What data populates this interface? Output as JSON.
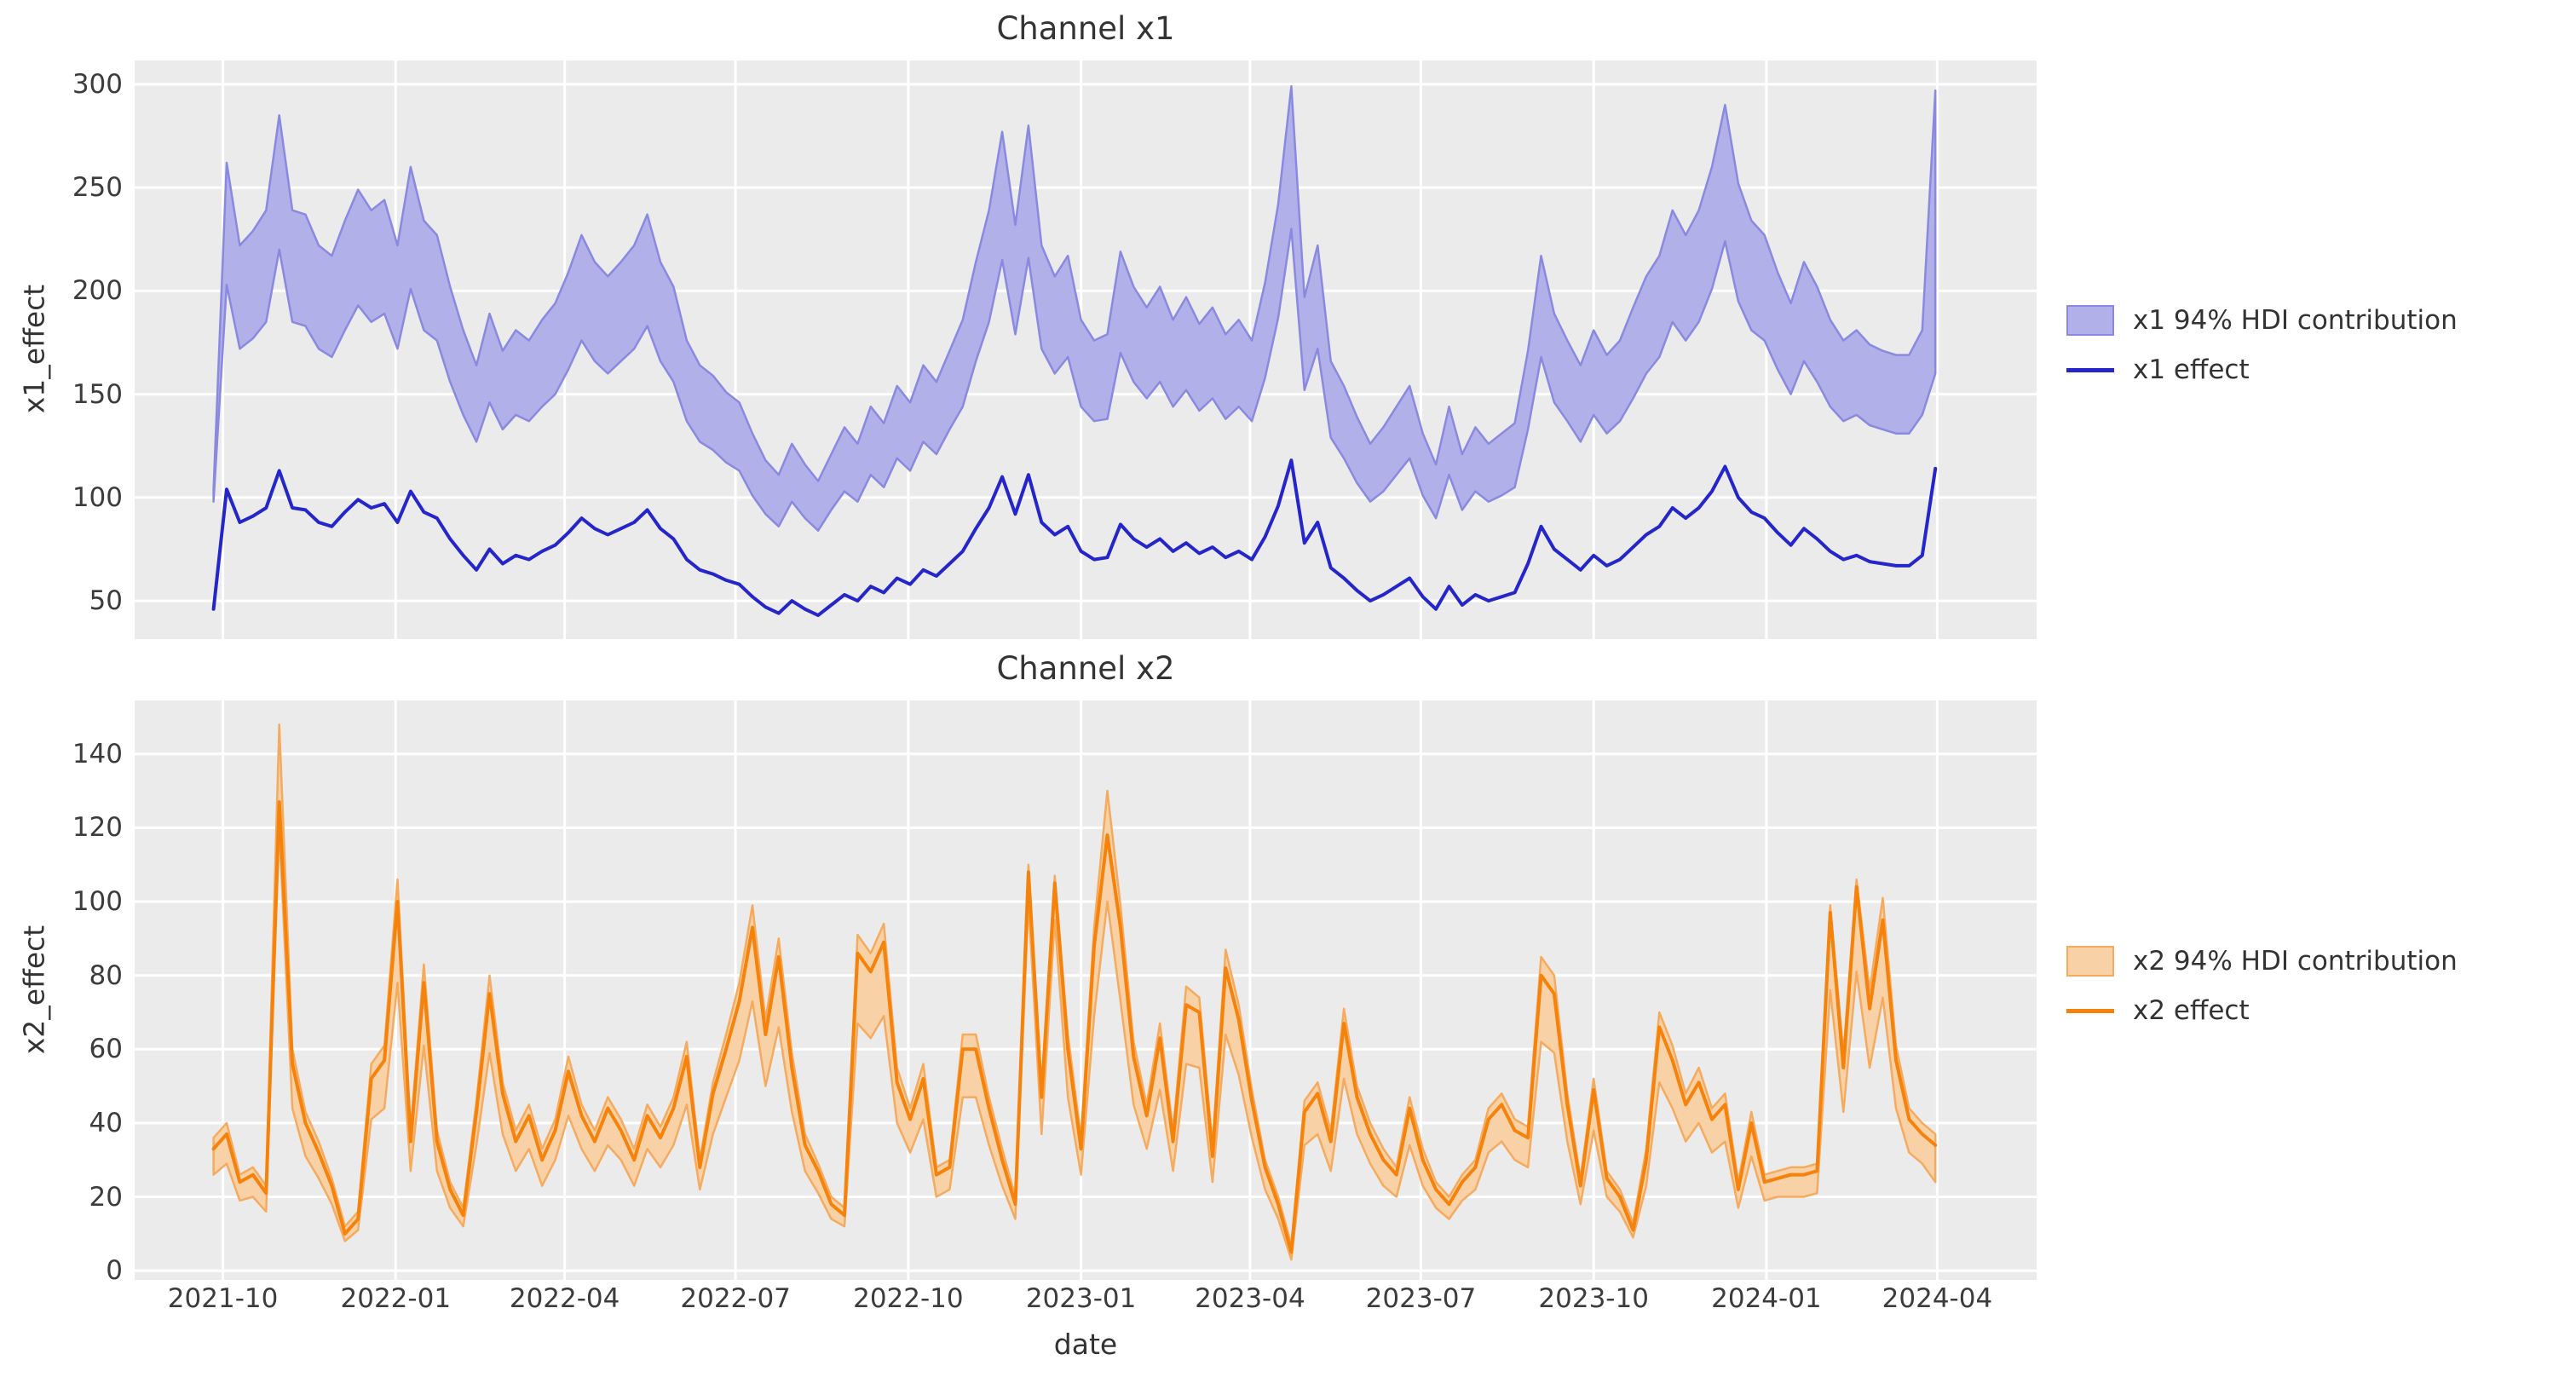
{
  "figure": {
    "panel_background": "#ebebeb",
    "grid_color": "#ffffff",
    "tick_text_color": "#3c3c3c",
    "label_text_color": "#333333"
  },
  "x_axis": {
    "label": "date",
    "x_start_date": "2021-09-26",
    "x_freq_days": 7,
    "n_points": 132,
    "ticks": [
      {
        "label": "2021-10",
        "date": "2021-10-01"
      },
      {
        "label": "2022-01",
        "date": "2022-01-01"
      },
      {
        "label": "2022-04",
        "date": "2022-04-01"
      },
      {
        "label": "2022-07",
        "date": "2022-07-01"
      },
      {
        "label": "2022-10",
        "date": "2022-10-01"
      },
      {
        "label": "2023-01",
        "date": "2023-01-01"
      },
      {
        "label": "2023-04",
        "date": "2023-04-01"
      },
      {
        "label": "2023-07",
        "date": "2023-07-01"
      },
      {
        "label": "2023-10",
        "date": "2023-10-01"
      },
      {
        "label": "2024-01",
        "date": "2024-01-01"
      },
      {
        "label": "2024-04",
        "date": "2024-04-01"
      }
    ]
  },
  "chart_data": [
    {
      "type": "area",
      "title": "Channel x1",
      "ylabel": "x1_effect",
      "xlabel": "date",
      "ylim": [
        31.5,
        311.5
      ],
      "yticks": [
        50,
        100,
        150,
        200,
        250,
        300
      ],
      "grid": true,
      "legend_position": "right",
      "series": [
        {
          "name": "x1 94% HDI contribution",
          "kind": "band",
          "fill_color": "#b1b0e8",
          "edge_color": "#8a89e0",
          "lower": [
            98,
            203,
            172,
            177,
            185,
            220,
            185,
            183,
            172,
            168,
            181,
            193,
            185,
            189,
            172,
            201,
            181,
            176,
            156,
            140,
            127,
            146,
            133,
            140,
            137,
            144,
            150,
            162,
            176,
            166,
            160,
            166,
            172,
            183,
            166,
            156,
            137,
            127,
            123,
            117,
            113,
            101,
            92,
            86,
            98,
            90,
            84,
            94,
            103,
            98,
            111,
            105,
            119,
            113,
            127,
            121,
            133,
            144,
            166,
            185,
            215,
            179,
            216,
            172,
            160,
            168,
            144,
            137,
            138,
            170,
            156,
            148,
            156,
            144,
            152,
            142,
            148,
            138,
            144,
            137,
            158,
            187,
            230,
            152,
            172,
            129,
            119,
            107,
            98,
            103,
            111,
            119,
            101,
            90,
            111,
            94,
            103,
            98,
            101,
            105,
            133,
            168,
            146,
            137,
            127,
            140,
            131,
            137,
            148,
            160,
            168,
            185,
            176,
            185,
            201,
            224,
            195,
            181,
            176,
            162,
            150,
            166,
            156,
            144,
            137,
            140,
            135,
            133,
            131,
            131,
            140,
            160
          ],
          "upper": [
            104,
            262,
            222,
            229,
            239,
            285,
            239,
            237,
            222,
            217,
            234,
            249,
            239,
            244,
            222,
            260,
            234,
            227,
            202,
            181,
            164,
            189,
            171,
            181,
            176,
            186,
            194,
            209,
            227,
            214,
            207,
            214,
            222,
            237,
            214,
            202,
            176,
            164,
            159,
            151,
            146,
            131,
            118,
            111,
            126,
            116,
            108,
            121,
            134,
            126,
            144,
            136,
            154,
            146,
            164,
            156,
            171,
            186,
            214,
            239,
            277,
            232,
            280,
            222,
            207,
            217,
            186,
            176,
            179,
            219,
            202,
            192,
            202,
            186,
            197,
            184,
            192,
            179,
            186,
            176,
            204,
            242,
            299,
            197,
            222,
            166,
            154,
            139,
            126,
            134,
            144,
            154,
            131,
            116,
            144,
            121,
            134,
            126,
            131,
            136,
            171,
            217,
            189,
            176,
            164,
            181,
            169,
            176,
            192,
            207,
            217,
            239,
            227,
            239,
            260,
            290,
            252,
            234,
            227,
            209,
            194,
            214,
            202,
            186,
            176,
            181,
            174,
            171,
            169,
            169,
            181,
            297
          ]
        },
        {
          "name": "x1 effect",
          "kind": "line",
          "color": "#2526c9",
          "values": [
            46,
            104,
            88,
            91,
            95,
            113,
            95,
            94,
            88,
            86,
            93,
            99,
            95,
            97,
            88,
            103,
            93,
            90,
            80,
            72,
            65,
            75,
            68,
            72,
            70,
            74,
            77,
            83,
            90,
            85,
            82,
            85,
            88,
            94,
            85,
            80,
            70,
            65,
            63,
            60,
            58,
            52,
            47,
            44,
            50,
            46,
            43,
            48,
            53,
            50,
            57,
            54,
            61,
            58,
            65,
            62,
            68,
            74,
            85,
            95,
            110,
            92,
            111,
            88,
            82,
            86,
            74,
            70,
            71,
            87,
            80,
            76,
            80,
            74,
            78,
            73,
            76,
            71,
            74,
            70,
            81,
            96,
            118,
            78,
            88,
            66,
            61,
            55,
            50,
            53,
            57,
            61,
            52,
            46,
            57,
            48,
            53,
            50,
            52,
            54,
            68,
            86,
            75,
            70,
            65,
            72,
            67,
            70,
            76,
            82,
            86,
            95,
            90,
            95,
            103,
            115,
            100,
            93,
            90,
            83,
            77,
            85,
            80,
            74,
            70,
            72,
            69,
            68,
            67,
            67,
            72,
            114
          ]
        }
      ]
    },
    {
      "type": "area",
      "title": "Channel x2",
      "ylabel": "x2_effect",
      "xlabel": "date",
      "ylim": [
        -2.5,
        154.5
      ],
      "yticks": [
        0,
        20,
        40,
        60,
        80,
        100,
        120,
        140
      ],
      "grid": true,
      "legend_position": "right",
      "series": [
        {
          "name": "x2 94% HDI contribution",
          "kind": "band",
          "fill_color": "#f9d1a7",
          "edge_color": "#f5ab5f",
          "lower": [
            26,
            29,
            19,
            20,
            16,
            120,
            44,
            31,
            25,
            18,
            8,
            11,
            41,
            44,
            78,
            27,
            61,
            27,
            17,
            12,
            34,
            59,
            37,
            27,
            33,
            23,
            30,
            42,
            33,
            27,
            34,
            30,
            23,
            33,
            28,
            34,
            45,
            22,
            37,
            47,
            57,
            73,
            50,
            66,
            43,
            27,
            21,
            14,
            12,
            67,
            63,
            69,
            40,
            32,
            41,
            20,
            22,
            47,
            47,
            34,
            23,
            14,
            100,
            37,
            95,
            47,
            26,
            69,
            100,
            73,
            45,
            33,
            49,
            27,
            56,
            55,
            24,
            64,
            53,
            36,
            22,
            14,
            3,
            34,
            37,
            27,
            52,
            37,
            29,
            23,
            20,
            34,
            23,
            17,
            14,
            19,
            22,
            32,
            35,
            30,
            28,
            62,
            59,
            35,
            18,
            38,
            20,
            16,
            9,
            23,
            51,
            44,
            35,
            40,
            32,
            35,
            17,
            31,
            19,
            20,
            20,
            20,
            21,
            76,
            43,
            81,
            55,
            74,
            44,
            32,
            29,
            24
          ],
          "upper": [
            36,
            40,
            26,
            28,
            23,
            148,
            60,
            43,
            35,
            25,
            12,
            16,
            56,
            61,
            106,
            38,
            83,
            38,
            24,
            17,
            46,
            80,
            51,
            38,
            45,
            33,
            41,
            58,
            45,
            38,
            47,
            41,
            33,
            45,
            39,
            47,
            62,
            30,
            51,
            64,
            78,
            99,
            68,
            90,
            59,
            37,
            29,
            20,
            17,
            91,
            86,
            94,
            55,
            44,
            56,
            28,
            30,
            64,
            64,
            47,
            33,
            20,
            110,
            50,
            107,
            64,
            36,
            93,
            130,
            99,
            62,
            45,
            67,
            38,
            77,
            74,
            34,
            87,
            72,
            49,
            30,
            20,
            7,
            46,
            51,
            38,
            71,
            50,
            40,
            33,
            28,
            47,
            33,
            24,
            20,
            26,
            30,
            44,
            48,
            41,
            39,
            85,
            80,
            48,
            25,
            52,
            27,
            22,
            13,
            33,
            70,
            61,
            48,
            55,
            44,
            48,
            24,
            43,
            26,
            27,
            28,
            28,
            29,
            99,
            59,
            106,
            76,
            101,
            61,
            44,
            40,
            37
          ]
        },
        {
          "name": "x2 effect",
          "kind": "line",
          "color": "#f5820b",
          "values": [
            33,
            37,
            24,
            26,
            21,
            127,
            56,
            40,
            32,
            23,
            10,
            14,
            52,
            57,
            100,
            35,
            78,
            35,
            22,
            15,
            43,
            75,
            48,
            35,
            42,
            30,
            38,
            54,
            42,
            35,
            44,
            38,
            30,
            42,
            36,
            44,
            58,
            28,
            48,
            60,
            73,
            93,
            64,
            85,
            55,
            34,
            27,
            18,
            15,
            86,
            81,
            89,
            51,
            41,
            52,
            26,
            28,
            60,
            60,
            44,
            30,
            18,
            108,
            47,
            105,
            60,
            33,
            88,
            118,
            93,
            58,
            42,
            63,
            35,
            72,
            70,
            31,
            82,
            68,
            46,
            28,
            18,
            5,
            43,
            48,
            35,
            67,
            47,
            37,
            30,
            26,
            44,
            30,
            22,
            18,
            24,
            28,
            41,
            45,
            38,
            36,
            80,
            75,
            45,
            23,
            49,
            25,
            20,
            11,
            30,
            66,
            57,
            45,
            51,
            41,
            45,
            22,
            40,
            24,
            25,
            26,
            26,
            27,
            97,
            55,
            104,
            71,
            95,
            57,
            41,
            37,
            34
          ]
        }
      ]
    }
  ]
}
